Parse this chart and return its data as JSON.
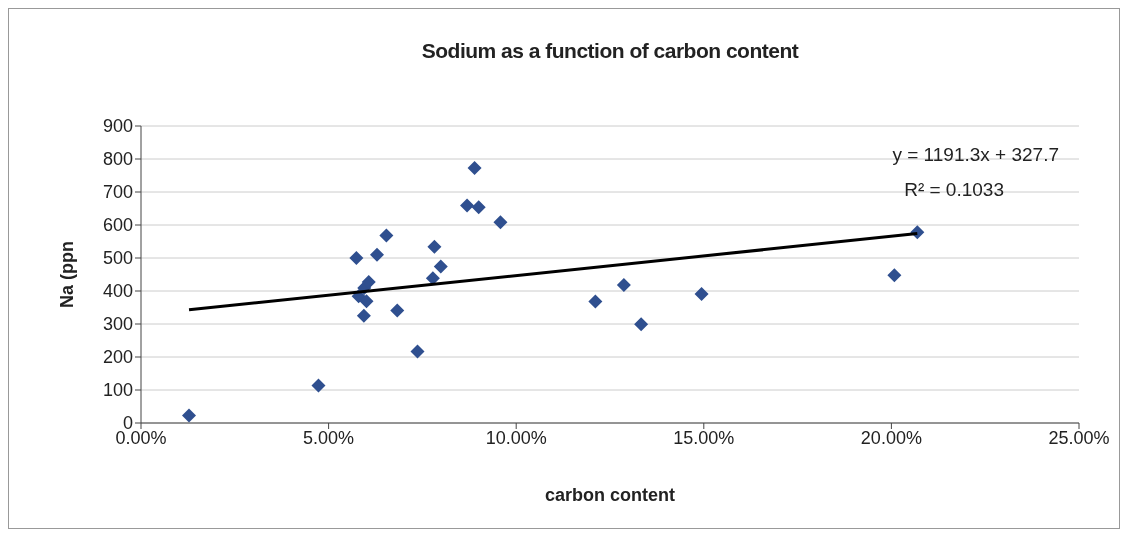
{
  "chart_data": {
    "type": "scatter",
    "title": "Sodium as a function of carbon content",
    "xlabel": "carbon content",
    "ylabel": "Na (ppn",
    "annotations": [
      "y = 1191.3x + 327.7",
      "R² = 0.1033"
    ],
    "series": [
      {
        "marker": "diamond",
        "color": "#2f4f8f",
        "x": [
          1.28,
          4.73,
          5.74,
          5.8,
          5.94,
          5.95,
          6.01,
          6.07,
          6.29,
          6.54,
          6.83,
          7.37,
          7.78,
          7.82,
          7.99,
          8.69,
          8.89,
          9.0,
          9.58,
          12.11,
          12.87,
          13.33,
          14.94,
          20.08,
          20.69
        ],
        "values": [
          23,
          114,
          500,
          384,
          325,
          409,
          369,
          427,
          510,
          568,
          341,
          217,
          439,
          534,
          474,
          659,
          773,
          654,
          608,
          368,
          418,
          299,
          391,
          448,
          578
        ]
      },
      {
        "type": "line",
        "color": "#000000",
        "x": [
          1.28,
          20.69
        ],
        "values": [
          343,
          574
        ]
      }
    ],
    "xlim": [
      0,
      25
    ],
    "xticks": [
      {
        "value": 0,
        "label": "0.00%"
      },
      {
        "value": 5,
        "label": "5.00%"
      },
      {
        "value": 10,
        "label": "10.00%"
      },
      {
        "value": 15,
        "label": "15.00%"
      },
      {
        "value": 20,
        "label": "20.00%"
      },
      {
        "value": 25,
        "label": "25.00%"
      }
    ],
    "ylim": [
      0,
      900
    ],
    "yticks": [
      0,
      100,
      200,
      300,
      400,
      500,
      600,
      700,
      800,
      900
    ],
    "grid": "y",
    "legend": false,
    "line_style": "solid"
  }
}
